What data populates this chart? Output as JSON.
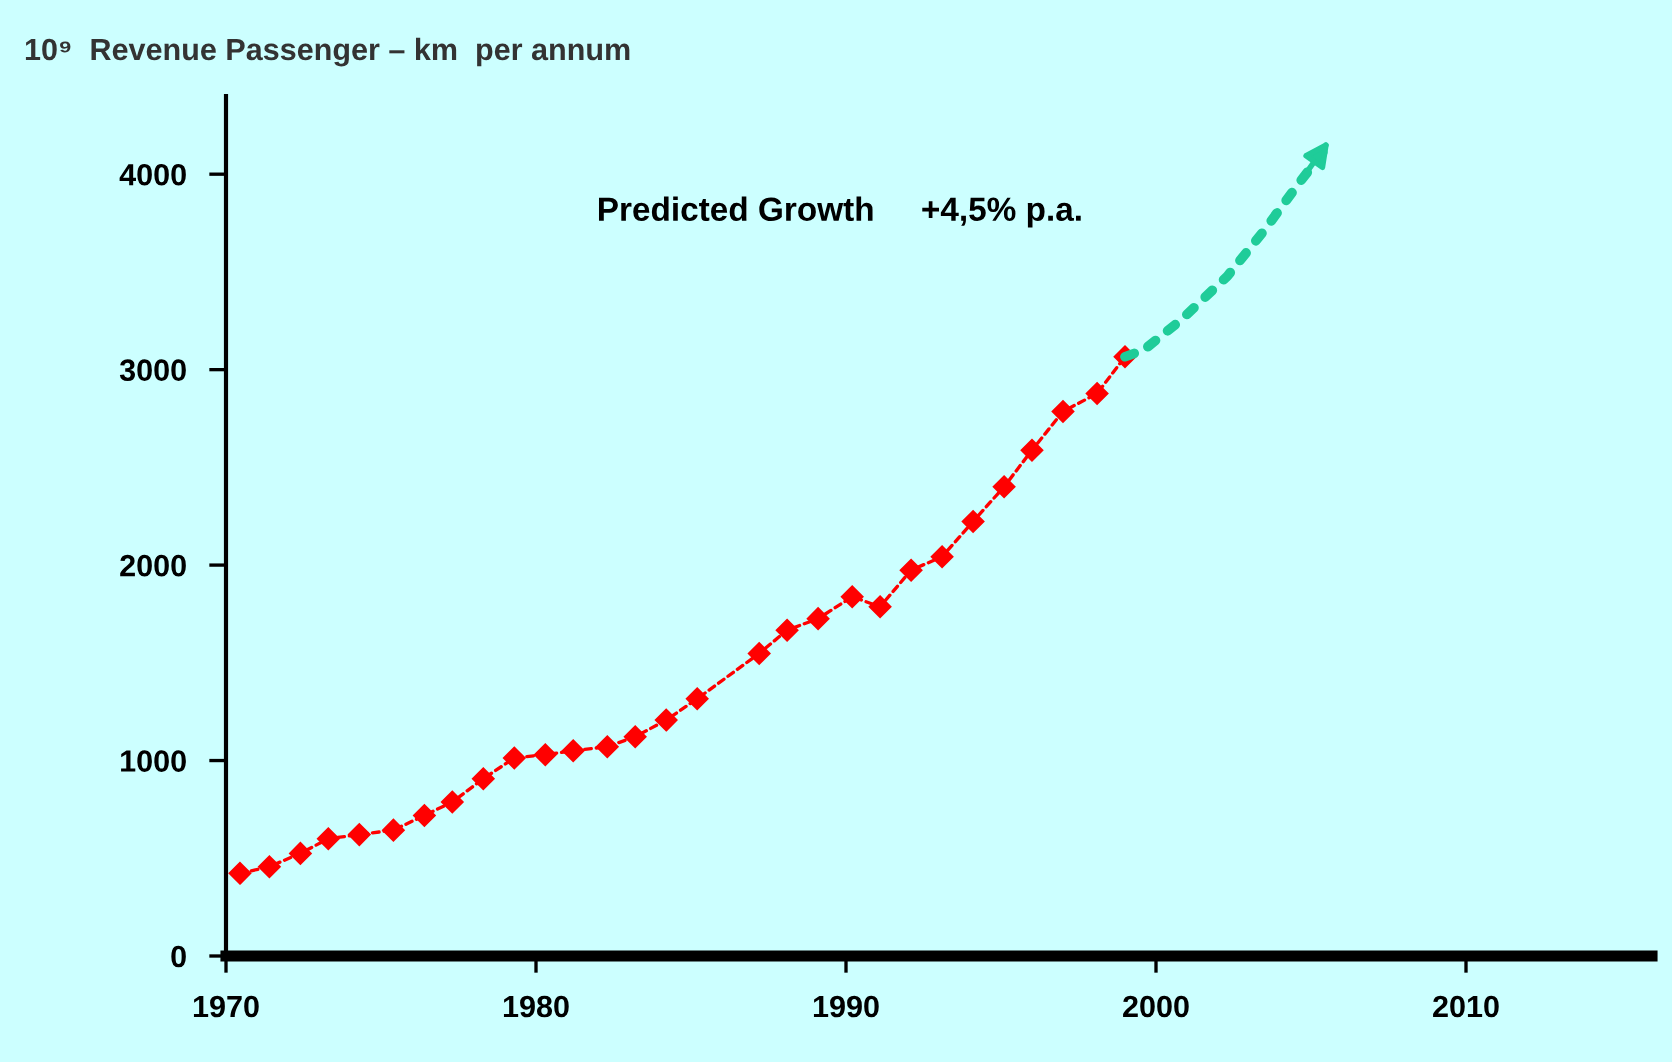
{
  "chart_data": {
    "type": "line",
    "ylabel": "10⁹  Revenue Passenger – km  per annum",
    "annotations": [
      "Predicted Growth     +4,5% p.a."
    ],
    "series": [
      {
        "color": "#ff0000",
        "marker": "diamond",
        "line_style": "dashed",
        "x": [
          1970.45,
          1971.4,
          1972.4,
          1973.3,
          1974.3,
          1975.4,
          1976.4,
          1977.3,
          1978.3,
          1979.3,
          1980.3,
          1981.2,
          1982.3,
          1983.2,
          1984.2,
          1985.2,
          1987.2,
          1988.1,
          1989.1,
          1990.2,
          1991.1,
          1992.1,
          1993.1,
          1994.1,
          1995.1,
          1996.0,
          1997.0,
          1998.1,
          1999.0
        ],
        "values": [
          423,
          457,
          525,
          600,
          621,
          644,
          719,
          788,
          907,
          1013,
          1030,
          1050,
          1071,
          1122,
          1207,
          1316,
          1548,
          1667,
          1726,
          1838,
          1787,
          1974,
          2043,
          2223,
          2401,
          2588,
          2786,
          2878,
          3066
        ]
      },
      {
        "color": "#1fcc99",
        "marker": "none",
        "line_style": "dotted",
        "x": [
          1999.0,
          1999.6,
          2000.8,
          2002.3,
          2003.5,
          2004.6,
          2005.6
        ],
        "values": [
          3066,
          3100,
          3253,
          3478,
          3714,
          3952,
          4157
        ]
      }
    ],
    "xlim": [
      1970,
      2016
    ],
    "xticks": [
      1970,
      1980,
      1990,
      2000,
      2010
    ],
    "ylim": [
      0,
      4400
    ],
    "yticks": [
      0,
      1000,
      2000,
      3000,
      4000
    ],
    "grid": false
  }
}
